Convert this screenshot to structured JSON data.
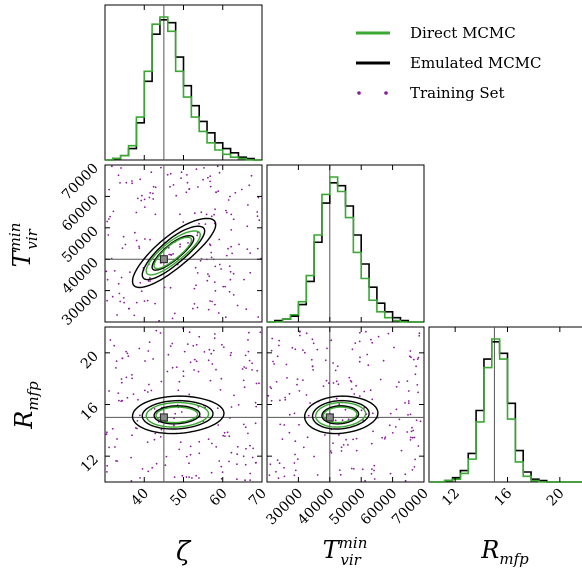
{
  "chart_data": {
    "type": "scatter",
    "subtype": "corner-plot",
    "params": [
      {
        "key": "zeta",
        "symbol": "ζ",
        "range": [
          30,
          70
        ],
        "ticks": [
          40,
          50,
          60,
          70
        ],
        "truth": 45
      },
      {
        "key": "tvir",
        "symbol_base": "T",
        "symbol_sup": "min",
        "symbol_sub": "vir",
        "range": [
          20000,
          70000
        ],
        "ticks": [
          30000,
          40000,
          50000,
          60000,
          70000
        ],
        "truth": 40000
      },
      {
        "key": "rmfp",
        "symbol_base": "R",
        "symbol_sub": "mfp",
        "range": [
          10,
          22
        ],
        "ticks": [
          12,
          16,
          20
        ],
        "truth": 15
      }
    ],
    "legend": {
      "position": "top-right",
      "entries": [
        {
          "label": "Direct MCMC",
          "color": "#3aa832",
          "style": "line"
        },
        {
          "label": "Emulated MCMC",
          "color": "#000000",
          "style": "line"
        },
        {
          "label": "Training Set",
          "color": "#8b1a9c",
          "style": "dots"
        }
      ]
    },
    "marginals": {
      "zeta": {
        "bin_edges": [
          30,
          32,
          34,
          36,
          38,
          40,
          42,
          44,
          46,
          48,
          50,
          52,
          54,
          56,
          58,
          60,
          62,
          64,
          66,
          68,
          70
        ],
        "direct": [
          0,
          0.01,
          0.03,
          0.1,
          0.3,
          0.62,
          0.95,
          1.0,
          0.9,
          0.62,
          0.44,
          0.3,
          0.2,
          0.12,
          0.07,
          0.04,
          0.02,
          0.01,
          0,
          0
        ],
        "emulated": [
          0,
          0.01,
          0.03,
          0.08,
          0.26,
          0.55,
          0.88,
          0.98,
          0.96,
          0.72,
          0.52,
          0.38,
          0.27,
          0.19,
          0.12,
          0.08,
          0.05,
          0.02,
          0.01,
          0
        ]
      },
      "tvir": {
        "bin_edges": [
          20000,
          22500,
          25000,
          27500,
          30000,
          32500,
          35000,
          37500,
          40000,
          42500,
          45000,
          47500,
          50000,
          52500,
          55000,
          57500,
          60000,
          62500,
          65000,
          67500,
          70000
        ],
        "direct": [
          0,
          0,
          0.02,
          0.05,
          0.14,
          0.32,
          0.6,
          0.88,
          1.0,
          0.9,
          0.72,
          0.48,
          0.3,
          0.15,
          0.07,
          0.03,
          0.01,
          0,
          0,
          0
        ],
        "emulated": [
          0,
          0.01,
          0.02,
          0.04,
          0.12,
          0.28,
          0.55,
          0.82,
          0.96,
          0.94,
          0.8,
          0.6,
          0.4,
          0.24,
          0.13,
          0.07,
          0.03,
          0.01,
          0,
          0
        ]
      },
      "rmfp": {
        "bin_edges": [
          10,
          10.6,
          11.2,
          11.8,
          12.4,
          13,
          13.6,
          14.2,
          14.8,
          15.4,
          16,
          16.6,
          17.2,
          17.8,
          18.4,
          19,
          19.6,
          20.2,
          20.8,
          21.4,
          22
        ],
        "direct": [
          0,
          0,
          0.01,
          0.02,
          0.06,
          0.16,
          0.42,
          0.8,
          1.0,
          0.86,
          0.44,
          0.14,
          0.04,
          0.01,
          0,
          0,
          0,
          0,
          0,
          0
        ],
        "emulated": [
          0,
          0,
          0.01,
          0.03,
          0.08,
          0.2,
          0.5,
          0.86,
          0.98,
          0.9,
          0.55,
          0.22,
          0.07,
          0.02,
          0.01,
          0,
          0,
          0,
          0,
          0
        ]
      }
    },
    "joint": [
      {
        "x": "zeta",
        "y": "tvir",
        "center": [
          47,
          42000
        ],
        "direct_sigma": [
          [
            4.5,
            5000
          ],
          [
            6.5,
            7000
          ]
        ],
        "emulated_sigma": [
          [
            5,
            5500
          ],
          [
            7.5,
            8500
          ],
          [
            10,
            11000
          ]
        ],
        "correlation": 0.82
      },
      {
        "x": "zeta",
        "y": "rmfp",
        "center": [
          48,
          15.2
        ],
        "direct_sigma": [
          [
            5,
            0.6
          ],
          [
            7.5,
            0.95
          ]
        ],
        "emulated_sigma": [
          [
            5.5,
            0.7
          ],
          [
            8.5,
            1.1
          ],
          [
            11,
            1.45
          ]
        ],
        "correlation": 0.08
      },
      {
        "x": "tvir",
        "y": "rmfp",
        "center": [
          43000,
          15.2
        ],
        "direct_sigma": [
          [
            5000,
            0.6
          ],
          [
            7500,
            0.95
          ]
        ],
        "emulated_sigma": [
          [
            5500,
            0.7
          ],
          [
            8500,
            1.1
          ],
          [
            11000,
            1.45
          ]
        ],
        "correlation": 0.1
      }
    ],
    "training_points": {
      "count_per_panel": 200,
      "zeta_range": [
        30,
        70
      ],
      "tvir_range": [
        20000,
        70000
      ],
      "rmfp_range": [
        10,
        22
      ]
    }
  },
  "colors": {
    "direct": "#3aa832",
    "emulated": "#000000",
    "training": "#8b1a9c",
    "truth": "#555555",
    "truth_marker": "#888888"
  }
}
